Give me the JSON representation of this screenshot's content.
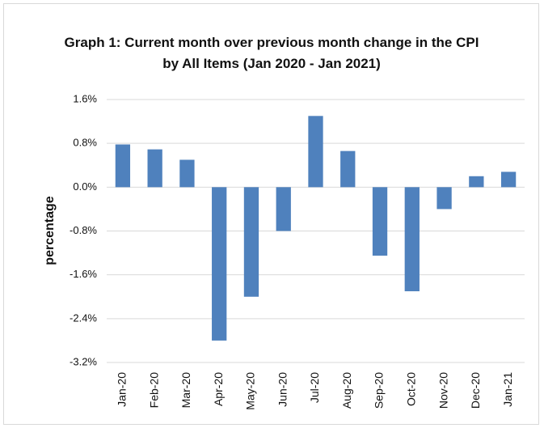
{
  "chart_data": {
    "type": "bar",
    "title": "Graph 1: Current month over previous month change in the CPI by All Items (Jan 2020 - Jan 2021)",
    "y_label": "percentage",
    "categories": [
      "Jan-20",
      "Feb-20",
      "Mar-20",
      "Apr-20",
      "May-20",
      "Jun-20",
      "Jul-20",
      "Aug-20",
      "Sep-20",
      "Oct-20",
      "Nov-20",
      "Dec-20",
      "Jan-21"
    ],
    "values": [
      0.78,
      0.69,
      0.5,
      -2.8,
      -2.0,
      -0.8,
      1.3,
      0.66,
      -1.25,
      -1.9,
      -0.4,
      0.2,
      0.28
    ],
    "color": "#4f81bd",
    "ylim": [
      -3.2,
      1.6
    ],
    "yticks": [
      {
        "value": 1.6,
        "label": "1.6%"
      },
      {
        "value": 0.8,
        "label": "0.8%"
      },
      {
        "value": 0.0,
        "label": "0.0%"
      },
      {
        "value": -0.8,
        "label": "-0.8%"
      },
      {
        "value": -1.6,
        "label": "-1.6%"
      },
      {
        "value": -2.4,
        "label": "-2.4%"
      },
      {
        "value": -3.2,
        "label": "-3.2%"
      }
    ],
    "grid": true
  }
}
